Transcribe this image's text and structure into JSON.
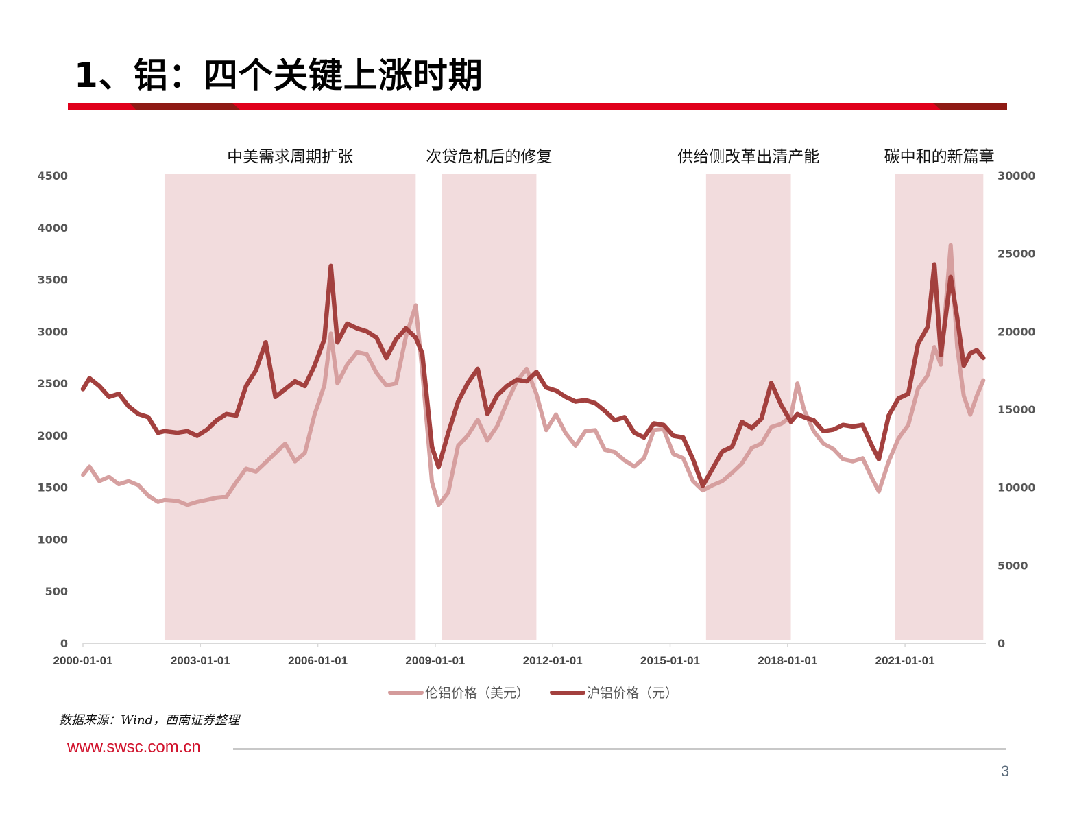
{
  "slide": {
    "title": "1、铝：四个关键上涨时期",
    "source_note": "数据来源：Wind，西南证券整理",
    "footer_url": "www.swsc.com.cn",
    "page_number": "3"
  },
  "colors": {
    "title_bar_red": "#e0001b",
    "title_bar_dark": "#8e1a14",
    "band_fill": "#f2dcdd",
    "lme_line": "#d49b9b",
    "shfe_line": "#a3403e",
    "axis_text": "#555555",
    "footer_url": "#d0102a"
  },
  "chart_data": {
    "type": "line",
    "title": "",
    "xlabel": "",
    "ylabel": "",
    "x_ticks": [
      "2000-01-01",
      "2003-01-01",
      "2006-01-01",
      "2009-01-01",
      "2012-01-01",
      "2015-01-01",
      "2018-01-01",
      "2021-01-01"
    ],
    "y_left": {
      "ticks": [
        0,
        500,
        1000,
        1500,
        2000,
        2500,
        3000,
        3500,
        4000,
        4500
      ],
      "ylim": [
        0,
        4500
      ]
    },
    "y_right": {
      "ticks": [
        0,
        5000,
        10000,
        15000,
        20000,
        25000,
        30000
      ],
      "ylim": [
        0,
        30000
      ]
    },
    "grid": false,
    "legend_position": "bottom",
    "shaded_periods": [
      {
        "label": "中美需求周期扩张",
        "start": "2002-02",
        "end": "2008-07"
      },
      {
        "label": "次贷危机后的修复",
        "start": "2009-03",
        "end": "2011-08"
      },
      {
        "label": "供给侧改革出清产能",
        "start": "2015-12",
        "end": "2018-02"
      },
      {
        "label": "碳中和的新篇章",
        "start": "2020-10",
        "end": "2023-01"
      }
    ],
    "series": [
      {
        "name": "伦铝价格（美元）",
        "axis": "left",
        "color": "#d49b9b",
        "points": [
          [
            "2000-01",
            1620
          ],
          [
            "2000-03",
            1700
          ],
          [
            "2000-06",
            1560
          ],
          [
            "2000-09",
            1600
          ],
          [
            "2000-12",
            1530
          ],
          [
            "2001-03",
            1560
          ],
          [
            "2001-06",
            1520
          ],
          [
            "2001-09",
            1420
          ],
          [
            "2001-12",
            1360
          ],
          [
            "2002-02",
            1380
          ],
          [
            "2002-06",
            1370
          ],
          [
            "2002-09",
            1330
          ],
          [
            "2002-12",
            1360
          ],
          [
            "2003-03",
            1380
          ],
          [
            "2003-06",
            1400
          ],
          [
            "2003-09",
            1410
          ],
          [
            "2003-12",
            1550
          ],
          [
            "2004-03",
            1680
          ],
          [
            "2004-06",
            1650
          ],
          [
            "2004-09",
            1740
          ],
          [
            "2004-12",
            1830
          ],
          [
            "2005-03",
            1920
          ],
          [
            "2005-06",
            1750
          ],
          [
            "2005-09",
            1830
          ],
          [
            "2005-12",
            2200
          ],
          [
            "2006-03",
            2480
          ],
          [
            "2006-05",
            2980
          ],
          [
            "2006-07",
            2500
          ],
          [
            "2006-10",
            2680
          ],
          [
            "2007-01",
            2800
          ],
          [
            "2007-04",
            2780
          ],
          [
            "2007-07",
            2600
          ],
          [
            "2007-10",
            2480
          ],
          [
            "2008-01",
            2500
          ],
          [
            "2008-04",
            2950
          ],
          [
            "2008-07",
            3250
          ],
          [
            "2008-09",
            2620
          ],
          [
            "2008-12",
            1550
          ],
          [
            "2009-02",
            1330
          ],
          [
            "2009-05",
            1450
          ],
          [
            "2009-08",
            1900
          ],
          [
            "2009-11",
            2000
          ],
          [
            "2010-02",
            2150
          ],
          [
            "2010-05",
            1950
          ],
          [
            "2010-08",
            2090
          ],
          [
            "2010-11",
            2320
          ],
          [
            "2011-02",
            2520
          ],
          [
            "2011-05",
            2640
          ],
          [
            "2011-08",
            2400
          ],
          [
            "2011-11",
            2050
          ],
          [
            "2012-02",
            2200
          ],
          [
            "2012-05",
            2020
          ],
          [
            "2012-08",
            1900
          ],
          [
            "2012-11",
            2040
          ],
          [
            "2013-02",
            2050
          ],
          [
            "2013-05",
            1860
          ],
          [
            "2013-08",
            1840
          ],
          [
            "2013-11",
            1760
          ],
          [
            "2014-02",
            1700
          ],
          [
            "2014-05",
            1780
          ],
          [
            "2014-08",
            2050
          ],
          [
            "2014-11",
            2060
          ],
          [
            "2015-02",
            1820
          ],
          [
            "2015-05",
            1780
          ],
          [
            "2015-08",
            1560
          ],
          [
            "2015-11",
            1470
          ],
          [
            "2016-02",
            1520
          ],
          [
            "2016-05",
            1560
          ],
          [
            "2016-08",
            1640
          ],
          [
            "2016-11",
            1730
          ],
          [
            "2017-02",
            1880
          ],
          [
            "2017-05",
            1920
          ],
          [
            "2017-08",
            2080
          ],
          [
            "2017-11",
            2110
          ],
          [
            "2018-02",
            2180
          ],
          [
            "2018-04",
            2500
          ],
          [
            "2018-06",
            2250
          ],
          [
            "2018-09",
            2040
          ],
          [
            "2018-12",
            1920
          ],
          [
            "2019-03",
            1870
          ],
          [
            "2019-06",
            1770
          ],
          [
            "2019-09",
            1750
          ],
          [
            "2019-12",
            1780
          ],
          [
            "2020-03",
            1580
          ],
          [
            "2020-05",
            1460
          ],
          [
            "2020-08",
            1750
          ],
          [
            "2020-11",
            1970
          ],
          [
            "2021-02",
            2100
          ],
          [
            "2021-05",
            2450
          ],
          [
            "2021-08",
            2580
          ],
          [
            "2021-10",
            2850
          ],
          [
            "2021-12",
            2680
          ],
          [
            "2022-03",
            3830
          ],
          [
            "2022-05",
            2850
          ],
          [
            "2022-07",
            2380
          ],
          [
            "2022-09",
            2200
          ],
          [
            "2022-11",
            2380
          ],
          [
            "2023-01",
            2530
          ]
        ]
      },
      {
        "name": "沪铝价格（元）",
        "axis": "right",
        "color": "#a3403e",
        "points": [
          [
            "2000-01",
            16300
          ],
          [
            "2000-03",
            17000
          ],
          [
            "2000-06",
            16500
          ],
          [
            "2000-09",
            15800
          ],
          [
            "2000-12",
            16000
          ],
          [
            "2001-03",
            15200
          ],
          [
            "2001-06",
            14700
          ],
          [
            "2001-09",
            14500
          ],
          [
            "2001-12",
            13500
          ],
          [
            "2002-02",
            13600
          ],
          [
            "2002-06",
            13500
          ],
          [
            "2002-09",
            13600
          ],
          [
            "2002-12",
            13300
          ],
          [
            "2003-03",
            13700
          ],
          [
            "2003-06",
            14300
          ],
          [
            "2003-09",
            14700
          ],
          [
            "2003-12",
            14600
          ],
          [
            "2004-03",
            16500
          ],
          [
            "2004-06",
            17500
          ],
          [
            "2004-09",
            19300
          ],
          [
            "2004-12",
            15800
          ],
          [
            "2005-03",
            16300
          ],
          [
            "2005-06",
            16800
          ],
          [
            "2005-09",
            16500
          ],
          [
            "2005-12",
            17800
          ],
          [
            "2006-03",
            19500
          ],
          [
            "2006-05",
            24200
          ],
          [
            "2006-07",
            19300
          ],
          [
            "2006-10",
            20500
          ],
          [
            "2007-01",
            20200
          ],
          [
            "2007-04",
            20000
          ],
          [
            "2007-07",
            19600
          ],
          [
            "2007-10",
            18300
          ],
          [
            "2008-01",
            19500
          ],
          [
            "2008-04",
            20200
          ],
          [
            "2008-07",
            19600
          ],
          [
            "2008-09",
            18600
          ],
          [
            "2008-12",
            12600
          ],
          [
            "2009-02",
            11300
          ],
          [
            "2009-05",
            13500
          ],
          [
            "2009-08",
            15500
          ],
          [
            "2009-11",
            16700
          ],
          [
            "2010-02",
            17600
          ],
          [
            "2010-05",
            14700
          ],
          [
            "2010-08",
            15900
          ],
          [
            "2010-11",
            16500
          ],
          [
            "2011-02",
            16900
          ],
          [
            "2011-05",
            16800
          ],
          [
            "2011-08",
            17400
          ],
          [
            "2011-11",
            16400
          ],
          [
            "2012-02",
            16200
          ],
          [
            "2012-05",
            15800
          ],
          [
            "2012-08",
            15500
          ],
          [
            "2012-11",
            15600
          ],
          [
            "2013-02",
            15400
          ],
          [
            "2013-05",
            14900
          ],
          [
            "2013-08",
            14300
          ],
          [
            "2013-11",
            14500
          ],
          [
            "2014-02",
            13500
          ],
          [
            "2014-05",
            13200
          ],
          [
            "2014-08",
            14100
          ],
          [
            "2014-11",
            14000
          ],
          [
            "2015-02",
            13300
          ],
          [
            "2015-05",
            13200
          ],
          [
            "2015-08",
            11800
          ],
          [
            "2015-11",
            10100
          ],
          [
            "2016-02",
            11200
          ],
          [
            "2016-05",
            12300
          ],
          [
            "2016-08",
            12600
          ],
          [
            "2016-11",
            14200
          ],
          [
            "2017-02",
            13800
          ],
          [
            "2017-05",
            14400
          ],
          [
            "2017-08",
            16700
          ],
          [
            "2017-11",
            15300
          ],
          [
            "2018-02",
            14200
          ],
          [
            "2018-04",
            14700
          ],
          [
            "2018-06",
            14500
          ],
          [
            "2018-09",
            14300
          ],
          [
            "2018-12",
            13600
          ],
          [
            "2019-03",
            13700
          ],
          [
            "2019-06",
            14000
          ],
          [
            "2019-09",
            13900
          ],
          [
            "2019-12",
            14000
          ],
          [
            "2020-03",
            12600
          ],
          [
            "2020-05",
            11800
          ],
          [
            "2020-08",
            14600
          ],
          [
            "2020-11",
            15700
          ],
          [
            "2021-02",
            16000
          ],
          [
            "2021-05",
            19200
          ],
          [
            "2021-08",
            20300
          ],
          [
            "2021-10",
            24300
          ],
          [
            "2021-12",
            18500
          ],
          [
            "2022-03",
            23500
          ],
          [
            "2022-05",
            20900
          ],
          [
            "2022-07",
            17800
          ],
          [
            "2022-09",
            18600
          ],
          [
            "2022-11",
            18800
          ],
          [
            "2023-01",
            18300
          ]
        ]
      }
    ]
  }
}
